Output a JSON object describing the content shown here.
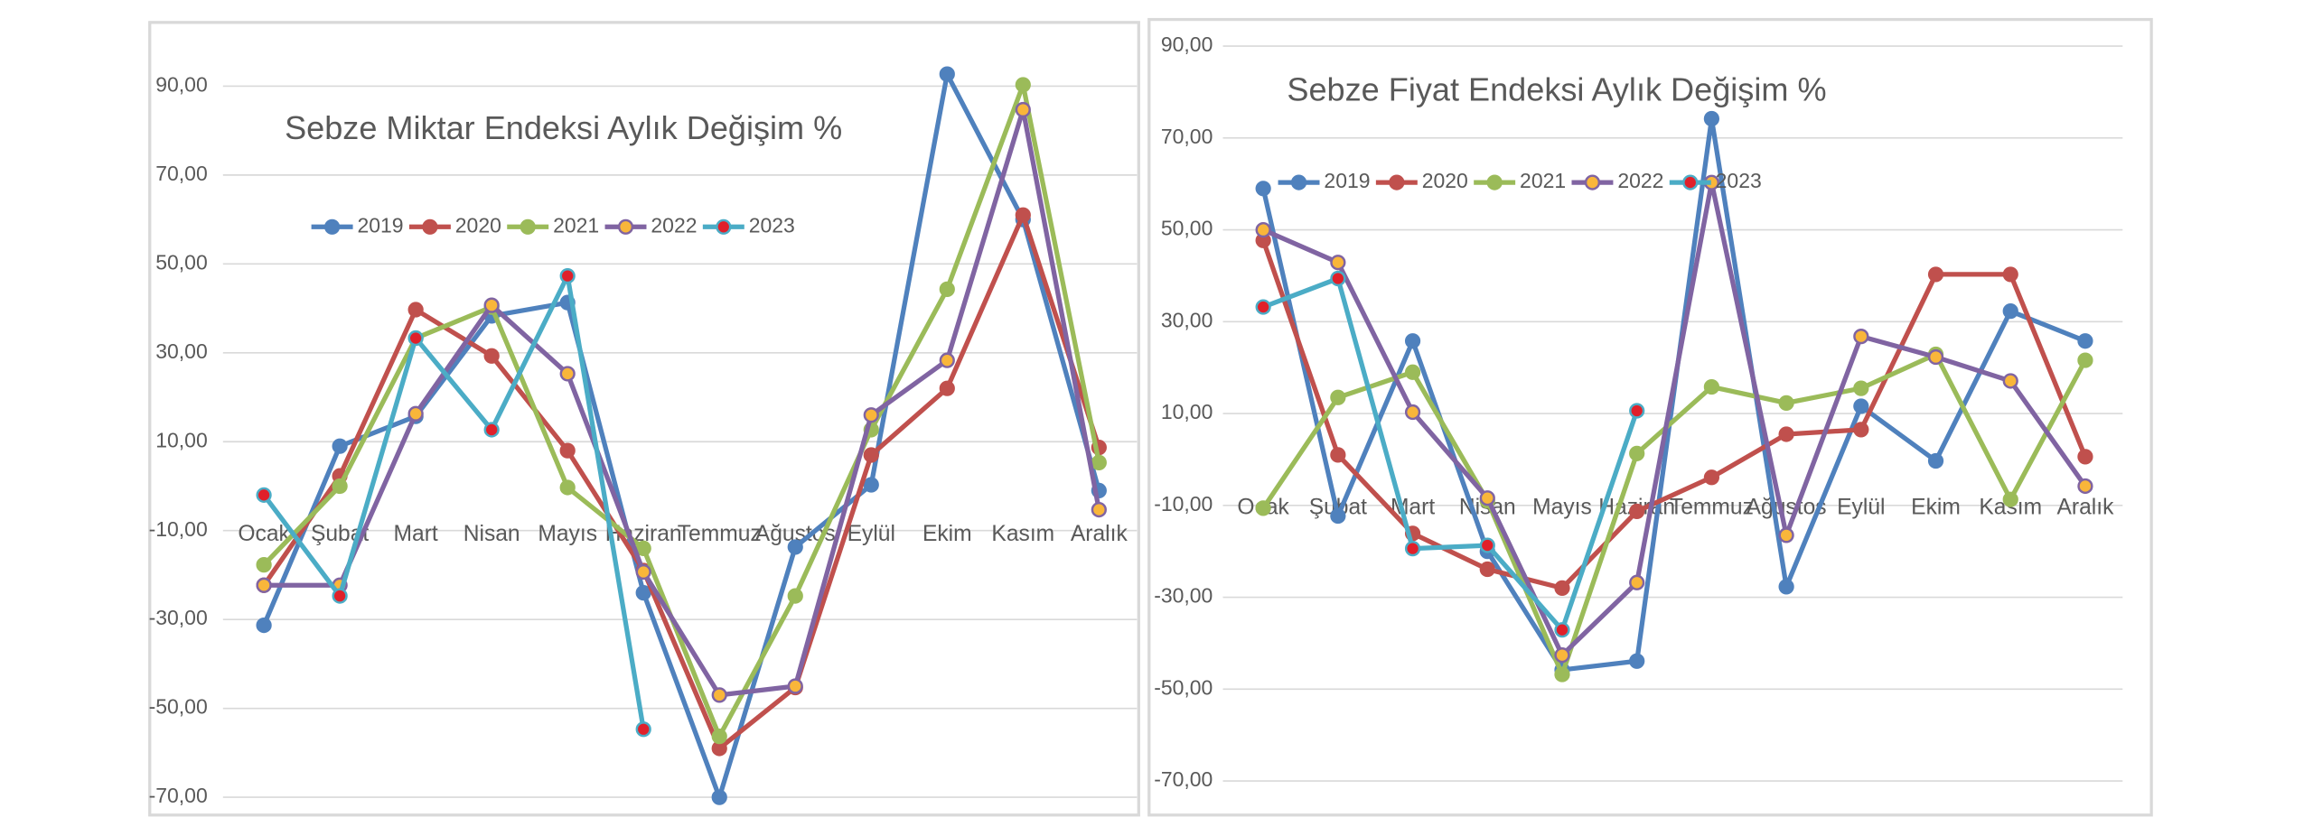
{
  "chart_data": [
    {
      "type": "line",
      "title": "Sebze Miktar Endeksi Aylık Değişim %",
      "categories": [
        "Ocak",
        "Şubat",
        "Mart",
        "Nisan",
        "Mayıs",
        "Haziran",
        "Temmuz",
        "Ağustos",
        "Eylül",
        "Ekim",
        "Kasım",
        "Aralık"
      ],
      "series": [
        {
          "name": "2019",
          "color": "#4f81bd",
          "marker_color": "#4f81bd",
          "values": [
            -31.3,
            9,
            15.7,
            38.3,
            41.3,
            -24,
            -70,
            -13.7,
            0.3,
            92.7,
            60,
            -1
          ]
        },
        {
          "name": "2020",
          "color": "#c0504d",
          "marker_color": "#c0504d",
          "values": [
            -22.3,
            2.3,
            39.7,
            29.3,
            8,
            -19,
            -59,
            -45.3,
            7,
            22,
            61,
            8.7
          ]
        },
        {
          "name": "2021",
          "color": "#9bbb59",
          "marker_color": "#9bbb59",
          "values": [
            -17.7,
            0,
            33.3,
            40.3,
            -0.3,
            -14,
            -56.3,
            -24.7,
            12.7,
            44.3,
            90.3,
            5.3
          ]
        },
        {
          "name": "2022",
          "color": "#8064a2",
          "marker_color": "#f9b63a",
          "values": [
            -22.3,
            -22.3,
            16.3,
            40.7,
            25.3,
            -19.3,
            -47,
            -45,
            16,
            28.3,
            84.7,
            -5.3
          ]
        },
        {
          "name": "2023",
          "color": "#4bacc6",
          "marker_color": "#e0202a",
          "values": [
            -2,
            -24.7,
            33.3,
            12.7,
            47.3,
            -54.7,
            null,
            null,
            null,
            null,
            null,
            null
          ]
        }
      ],
      "ylim": [
        -73,
        100
      ],
      "yticks": [
        {
          "value": -70,
          "label": "-70,00"
        },
        {
          "value": -50,
          "label": "-50,00"
        },
        {
          "value": -30,
          "label": "-30,00"
        },
        {
          "value": -10,
          "label": "-10,00"
        },
        {
          "value": 10,
          "label": "10,00"
        },
        {
          "value": 30,
          "label": "30,00"
        },
        {
          "value": 50,
          "label": "50,00"
        },
        {
          "value": 70,
          "label": "70,00"
        },
        {
          "value": 90,
          "label": "90,00"
        }
      ],
      "grid": true
    },
    {
      "type": "line",
      "title": "Sebze Fiyat Endeksi Aylık Değişim %",
      "categories": [
        "Ocak",
        "Şubat",
        "Mart",
        "Nisan",
        "Mayıs",
        "Haziran",
        "Temmuz",
        "Ağustos",
        "Eylül",
        "Ekim",
        "Kasım",
        "Aralık"
      ],
      "series": [
        {
          "name": "2019",
          "color": "#4f81bd",
          "marker_color": "#4f81bd",
          "values": [
            59,
            -12.3,
            25.8,
            -20,
            -45.8,
            -43.9,
            74.2,
            -27.7,
            11.6,
            -0.3,
            32.3,
            25.8
          ]
        },
        {
          "name": "2020",
          "color": "#c0504d",
          "marker_color": "#c0504d",
          "values": [
            47.7,
            1,
            -16.1,
            -23.9,
            -28,
            -11.3,
            -3.9,
            5.5,
            6.5,
            40.3,
            40.3,
            0.6
          ]
        },
        {
          "name": "2021",
          "color": "#9bbb59",
          "marker_color": "#9bbb59",
          "values": [
            -10.6,
            13.5,
            19,
            -9,
            -46.8,
            1.3,
            15.8,
            12.3,
            15.5,
            22.9,
            -8.7,
            21.6
          ]
        },
        {
          "name": "2022",
          "color": "#8064a2",
          "marker_color": "#f9b63a",
          "values": [
            50,
            42.9,
            10.3,
            -8.4,
            -42.6,
            -26.8,
            60.3,
            -16.5,
            26.8,
            22.3,
            17.1,
            -5.8
          ]
        },
        {
          "name": "2023",
          "color": "#4bacc6",
          "marker_color": "#e0202a",
          "values": [
            33.2,
            39.4,
            -19.4,
            -18.7,
            -37.1,
            10.6,
            null,
            null,
            null,
            null,
            null,
            null
          ]
        }
      ],
      "ylim": [
        -75,
        95
      ],
      "yticks": [
        {
          "value": -70,
          "label": "-70,00"
        },
        {
          "value": -50,
          "label": "-50,00"
        },
        {
          "value": -30,
          "label": "-30,00"
        },
        {
          "value": -10,
          "label": "-10,00"
        },
        {
          "value": 10,
          "label": "10,00"
        },
        {
          "value": 30,
          "label": "30,00"
        },
        {
          "value": 50,
          "label": "50,00"
        },
        {
          "value": 70,
          "label": "70,00"
        },
        {
          "value": 90,
          "label": "90,00"
        }
      ],
      "grid": true
    }
  ]
}
